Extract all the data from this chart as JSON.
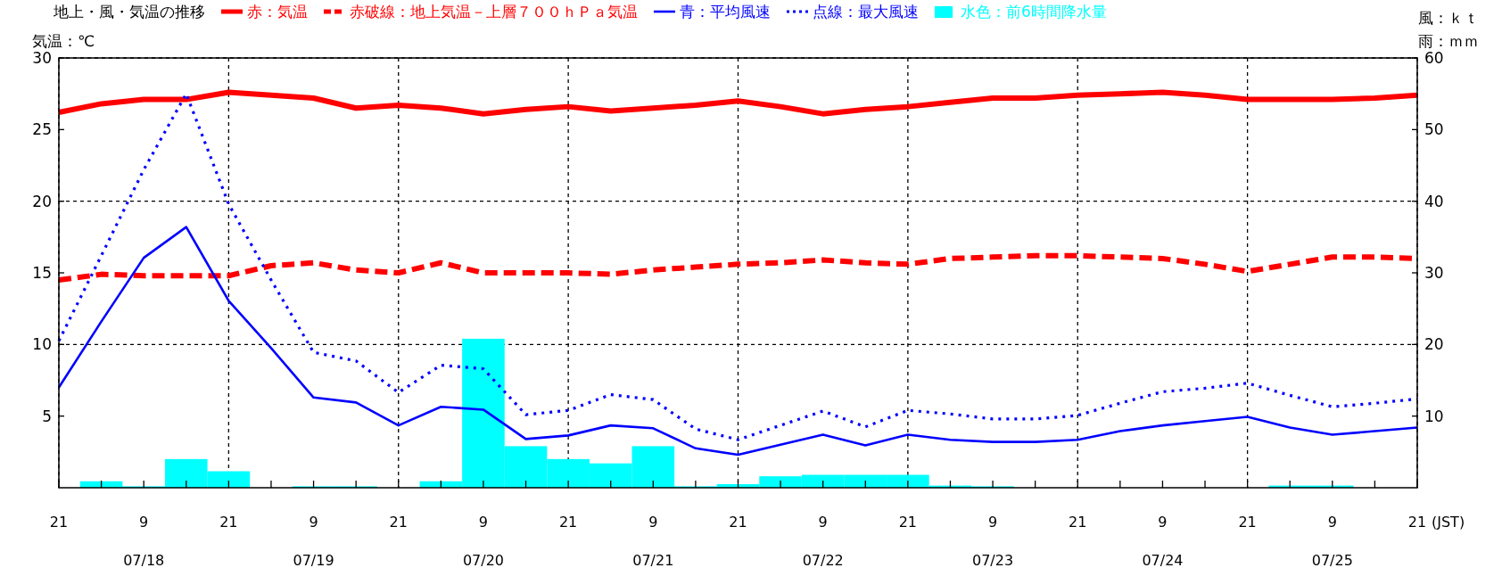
{
  "chart_data": {
    "type": "line",
    "title": "地上・風・気温の推移",
    "ylabel": "気温：℃",
    "y2label": "風：ｋｔ",
    "xlabel": "(JST)",
    "annotations": [
      "雨：ｍｍ",
      "07/18",
      "07/19",
      "07/20",
      "07/21",
      "07/22",
      "07/23",
      "07/24",
      "07/25"
    ],
    "categories": [
      "21",
      null,
      "9",
      null,
      "21",
      null,
      "9",
      null,
      "21",
      null,
      "9",
      null,
      "21",
      null,
      "9",
      null,
      "21",
      null,
      "9",
      null,
      "21",
      null,
      "9",
      null,
      "21",
      null,
      "9",
      null,
      "21",
      null,
      "9",
      null,
      "21"
    ],
    "ylim": [
      0,
      30
    ],
    "yticks": [
      5,
      10,
      15,
      20,
      25,
      30
    ],
    "y2lim": [
      0,
      60
    ],
    "y2ticks": [
      10,
      20,
      30,
      40,
      50,
      60
    ],
    "grid": true,
    "legend": "top",
    "series": [
      {
        "name": "赤：気温",
        "color": "#ff0000",
        "line_style": "solid",
        "values": [
          26.2,
          26.8,
          27.1,
          27.1,
          27.6,
          27.4,
          27.2,
          26.5,
          26.7,
          26.5,
          26.1,
          26.4,
          26.6,
          26.3,
          26.5,
          26.7,
          27.0,
          26.6,
          26.1,
          26.4,
          26.6,
          26.9,
          27.2,
          27.2,
          27.4,
          27.5,
          27.6,
          27.4,
          27.1,
          27.1,
          27.1,
          27.2,
          27.4
        ]
      },
      {
        "name": "赤破線：地上気温－上層７００ｈＰａ気温",
        "color": "#ff0000",
        "line_style": "dashed",
        "values": [
          14.5,
          14.9,
          14.8,
          14.8,
          14.8,
          15.5,
          15.7,
          15.2,
          15.0,
          15.7,
          15.0,
          15.0,
          15.0,
          14.9,
          15.2,
          15.4,
          15.6,
          15.7,
          15.9,
          15.7,
          15.6,
          16.0,
          16.1,
          16.2,
          16.2,
          16.1,
          16.0,
          15.6,
          15.1,
          15.6,
          16.1,
          16.1,
          16.0
        ]
      },
      {
        "name": "青：平均風速",
        "color": "#0000ff",
        "line_style": "solid",
        "axis": "y2",
        "values": [
          14.0,
          23.2,
          32.1,
          36.4,
          26.1,
          19.5,
          12.6,
          11.9,
          8.7,
          11.3,
          10.9,
          6.8,
          7.3,
          8.7,
          8.3,
          5.5,
          4.6,
          6.0,
          7.4,
          5.9,
          7.4,
          6.7,
          6.4,
          6.4,
          6.7,
          7.9,
          8.7,
          9.3,
          9.9,
          8.4,
          7.4,
          7.9,
          8.4
        ]
      },
      {
        "name": "点線：最大風速",
        "color": "#0000ff",
        "line_style": "dotted",
        "axis": "y2",
        "values": [
          20.5,
          32.4,
          44.4,
          55.0,
          39.6,
          29.0,
          18.9,
          17.7,
          13.3,
          17.1,
          16.6,
          10.2,
          10.8,
          13.0,
          12.3,
          8.2,
          6.7,
          8.7,
          10.7,
          8.5,
          10.8,
          10.3,
          9.6,
          9.6,
          10.1,
          11.8,
          13.4,
          13.9,
          14.6,
          12.9,
          11.3,
          11.8,
          12.4
        ]
      },
      {
        "name": "水色：前6時間降水量",
        "type": "bar",
        "color": "#00ffff",
        "axis": "y2",
        "values": [
          null,
          0.9,
          0.2,
          4.0,
          2.3,
          null,
          0.2,
          0.2,
          null,
          0.9,
          20.8,
          5.8,
          4.0,
          3.4,
          5.8,
          0.2,
          0.5,
          1.6,
          1.8,
          1.8,
          1.8,
          0.3,
          0.2,
          null,
          null,
          null,
          null,
          null,
          null,
          0.3,
          0.3,
          null,
          null
        ]
      }
    ]
  }
}
